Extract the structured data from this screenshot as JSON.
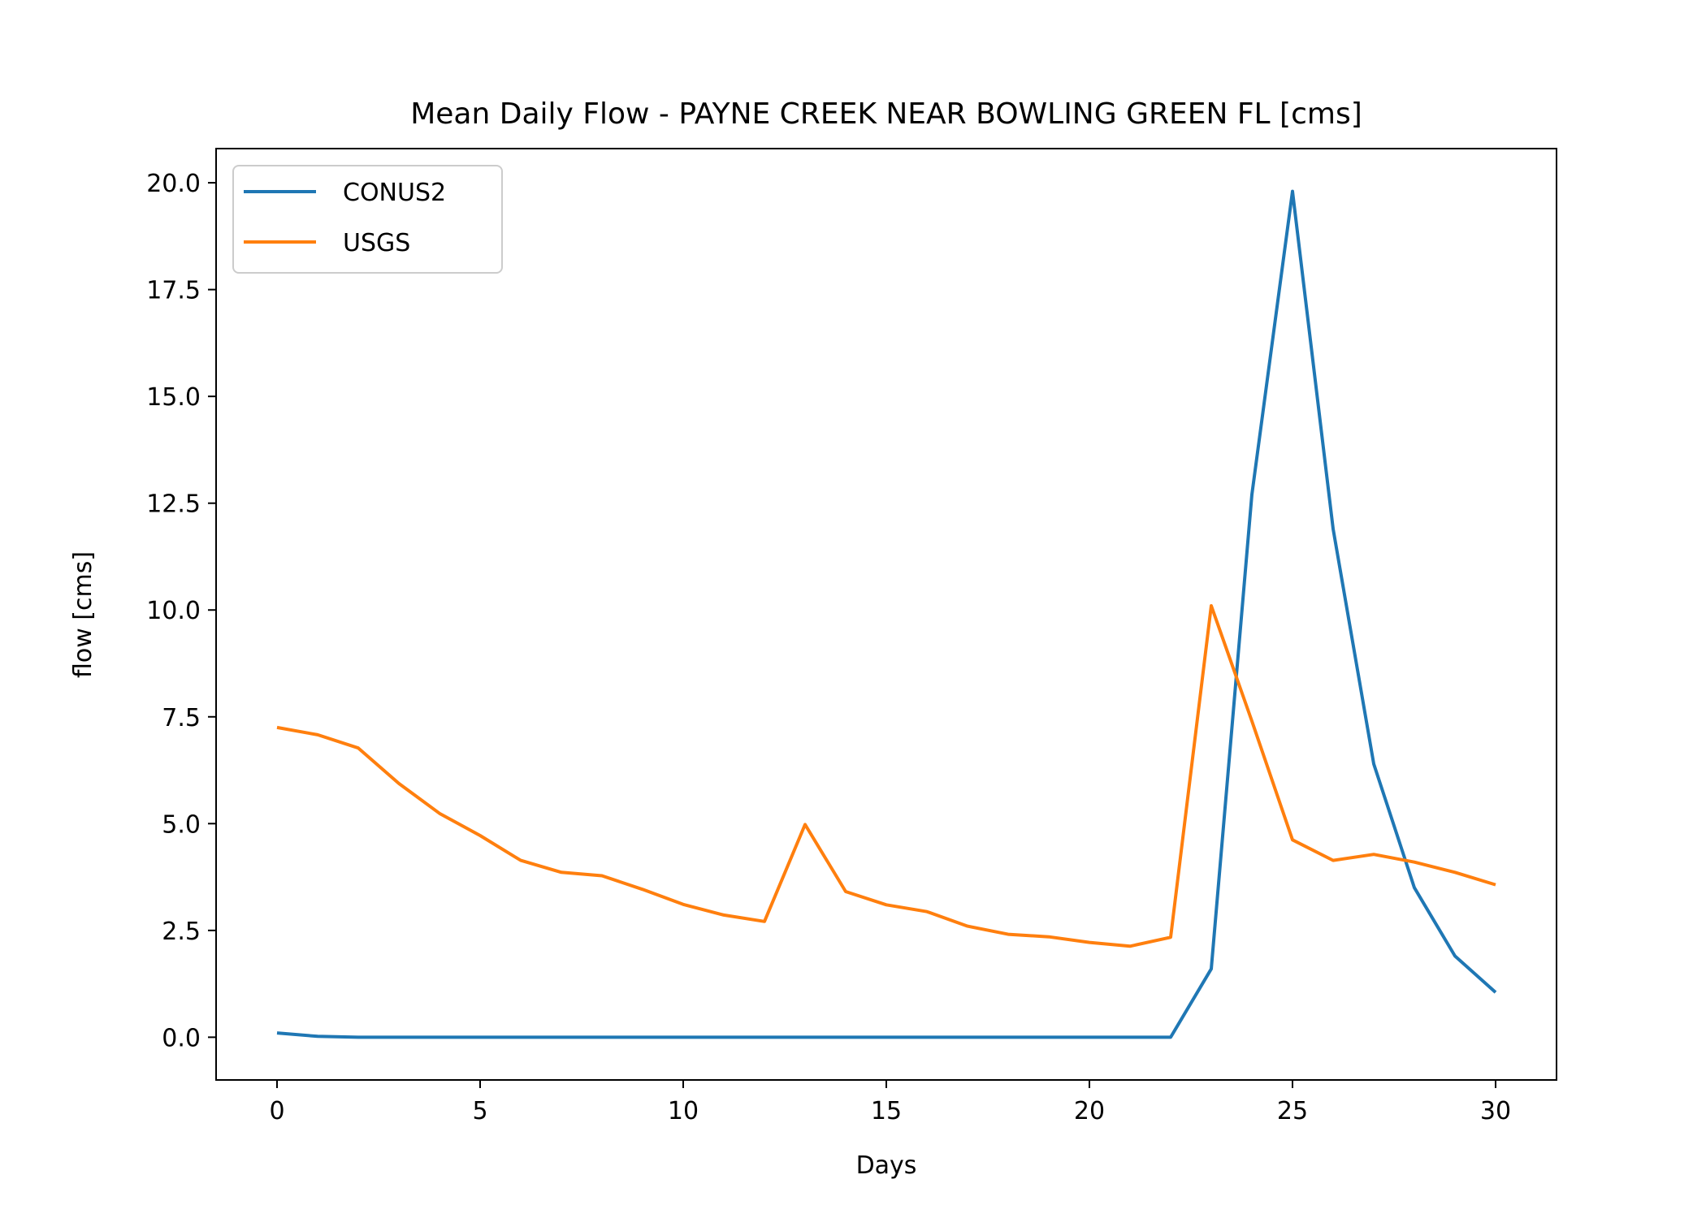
{
  "chart_data": {
    "type": "line",
    "title": "Mean Daily Flow - PAYNE CREEK NEAR BOWLING GREEN FL [cms]",
    "xlabel": "Days",
    "ylabel": "flow [cms]",
    "xlim": [
      -1.5,
      31.5
    ],
    "ylim": [
      -1.0,
      20.8
    ],
    "xticks": [
      0,
      5,
      10,
      15,
      20,
      25,
      30
    ],
    "yticks": [
      0.0,
      2.5,
      5.0,
      7.5,
      10.0,
      12.5,
      15.0,
      17.5,
      20.0
    ],
    "grid": false,
    "legend_position": "upper left",
    "x": [
      0,
      1,
      2,
      3,
      4,
      5,
      6,
      7,
      8,
      9,
      10,
      11,
      12,
      13,
      14,
      15,
      16,
      17,
      18,
      19,
      20,
      21,
      22,
      23,
      24,
      25,
      26,
      27,
      28,
      29,
      30
    ],
    "series": [
      {
        "name": "CONUS2",
        "color": "#1f77b4",
        "values": [
          0.1,
          0.02,
          0.0,
          0.0,
          0.0,
          0.0,
          0.0,
          0.0,
          0.0,
          0.0,
          0.0,
          0.0,
          0.0,
          0.0,
          0.0,
          0.0,
          0.0,
          0.0,
          0.0,
          0.0,
          0.0,
          0.0,
          0.0,
          1.6,
          12.7,
          19.8,
          11.9,
          6.4,
          3.5,
          1.9,
          1.05
        ]
      },
      {
        "name": "USGS",
        "color": "#ff7f0e",
        "values": [
          7.25,
          7.08,
          6.77,
          5.94,
          5.24,
          4.72,
          4.14,
          3.86,
          3.78,
          3.46,
          3.11,
          2.86,
          2.71,
          4.98,
          3.41,
          3.1,
          2.94,
          2.6,
          2.41,
          2.35,
          2.22,
          2.13,
          2.34,
          10.1,
          7.4,
          4.62,
          4.14,
          4.28,
          4.1,
          3.86,
          3.57
        ]
      }
    ]
  }
}
